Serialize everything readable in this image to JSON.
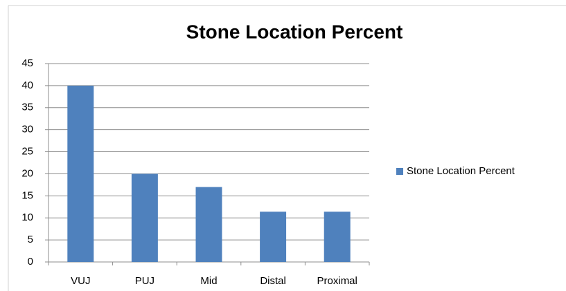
{
  "chart_data": {
    "type": "bar",
    "title": "Stone Location  Percent",
    "categories": [
      "VUJ",
      "PUJ",
      "Mid",
      "Distal",
      "Proximal"
    ],
    "series": [
      {
        "name": "Stone Location  Percent",
        "color": "#4f81bd",
        "values": [
          40,
          20,
          17,
          11.4,
          11.4
        ]
      }
    ],
    "ylim": [
      0,
      45
    ],
    "yticks": [
      0,
      5,
      10,
      15,
      20,
      25,
      30,
      35,
      40,
      45
    ],
    "grid": true,
    "legend": "right"
  }
}
